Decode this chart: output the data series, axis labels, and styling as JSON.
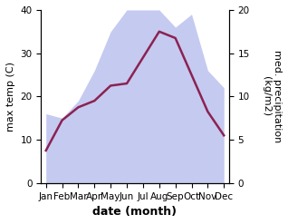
{
  "months": [
    "Jan",
    "Feb",
    "Mar",
    "Apr",
    "May",
    "Jun",
    "Jul",
    "Aug",
    "Sep",
    "Oct",
    "Nov",
    "Dec"
  ],
  "temp": [
    7.5,
    14.5,
    17.5,
    19.0,
    22.5,
    23.0,
    29.0,
    35.0,
    33.5,
    25.0,
    16.5,
    11.0
  ],
  "precip": [
    8.0,
    7.5,
    9.5,
    13.0,
    17.5,
    20.0,
    20.0,
    20.0,
    18.0,
    19.5,
    13.0,
    11.0
  ],
  "temp_color": "#8b2252",
  "precip_fill_color": "#c5caf0",
  "precip_line_color": "#c5caf0",
  "ylabel_left": "max temp (C)",
  "ylabel_right": "med. precipitation\n(kg/m2)",
  "xlabel": "date (month)",
  "ylim_left": [
    0,
    40
  ],
  "ylim_right": [
    0,
    20
  ],
  "bg_color": "#ffffff",
  "label_fontsize": 8,
  "tick_fontsize": 7.5
}
